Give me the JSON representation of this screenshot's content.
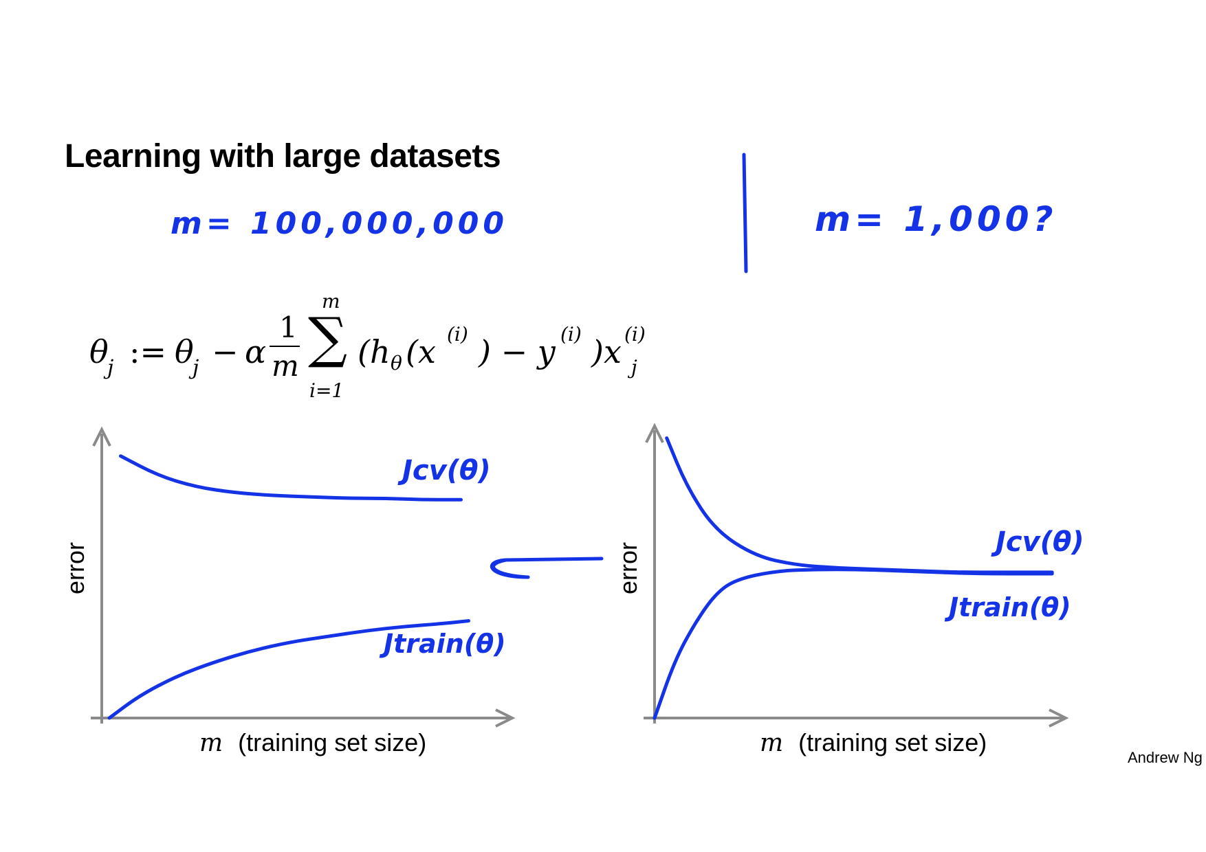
{
  "slide": {
    "title": "Learning with large datasets",
    "notes": {
      "left_m": "m= 100,000,000",
      "right_m": "m= 1,000?"
    },
    "equation": {
      "lhs": "θ",
      "lhs_sub": "j",
      "assign": ":=",
      "theta": "θ",
      "theta_sub": "j",
      "minus": "−",
      "alpha": "α",
      "frac_num": "1",
      "frac_den": "m",
      "sum_top": "m",
      "sum_sign": "∑",
      "sum_bottom": "i=1",
      "body": "(h",
      "h_sub": "θ",
      "x_open": "(x",
      "sup_i": "(i)",
      "close_minus_y": ") − y",
      "close_x": ")x",
      "xj_sub": "j"
    },
    "author": "Andrew Ng"
  },
  "chart_data": [
    {
      "type": "line",
      "xlabel_var": "m",
      "xlabel": "(training set size)",
      "ylabel": "error",
      "series": [
        {
          "name": "Jcv(θ)",
          "x": [
            0.05,
            0.15,
            0.25,
            0.35,
            0.45,
            0.55,
            0.65,
            0.75,
            0.85,
            0.95
          ],
          "y": [
            0.93,
            0.86,
            0.82,
            0.8,
            0.79,
            0.785,
            0.78,
            0.78,
            0.775,
            0.775
          ]
        },
        {
          "name": "Jtrain(θ)",
          "x": [
            0.02,
            0.1,
            0.2,
            0.3,
            0.4,
            0.5,
            0.6,
            0.7,
            0.8,
            0.9,
            0.97
          ],
          "y": [
            0.0,
            0.08,
            0.15,
            0.2,
            0.24,
            0.27,
            0.29,
            0.31,
            0.325,
            0.335,
            0.345
          ]
        }
      ]
    },
    {
      "type": "line",
      "xlabel_var": "m",
      "xlabel": "(training set size)",
      "ylabel": "error",
      "series": [
        {
          "name": "Jcv(θ)",
          "x": [
            0.03,
            0.08,
            0.15,
            0.25,
            0.35,
            0.45,
            0.55,
            0.65,
            0.75,
            0.85,
            0.98
          ],
          "y": [
            0.97,
            0.8,
            0.65,
            0.56,
            0.53,
            0.52,
            0.515,
            0.51,
            0.505,
            0.505,
            0.505
          ]
        },
        {
          "name": "Jtrain(θ)",
          "x": [
            0.0,
            0.05,
            0.1,
            0.15,
            0.2,
            0.3,
            0.4,
            0.5,
            0.6,
            0.7,
            0.8,
            0.98
          ],
          "y": [
            0.0,
            0.2,
            0.33,
            0.43,
            0.48,
            0.51,
            0.515,
            0.515,
            0.51,
            0.505,
            0.5,
            0.5
          ]
        }
      ]
    }
  ]
}
